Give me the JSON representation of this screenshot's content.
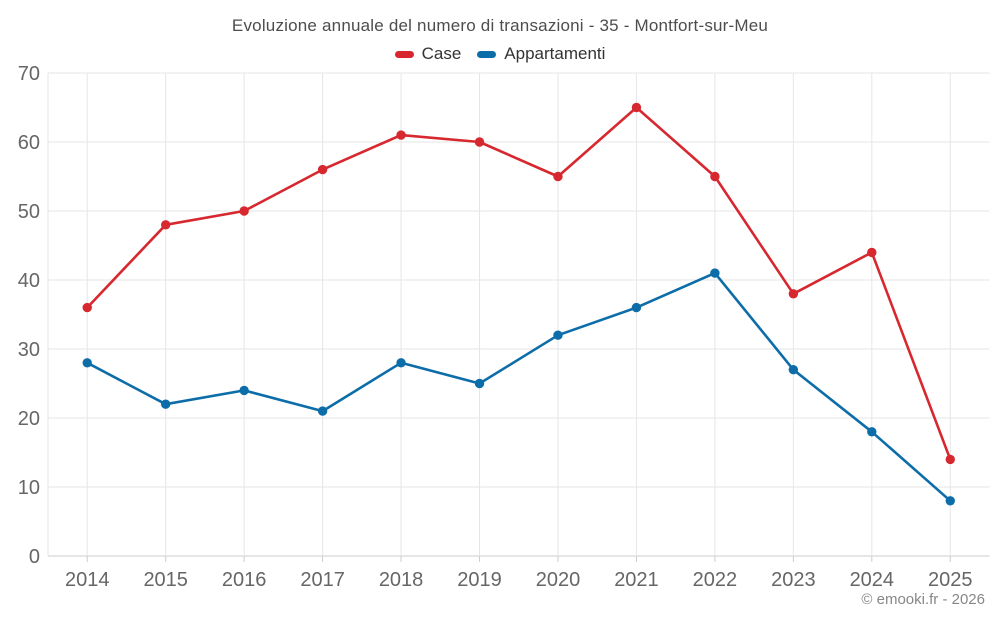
{
  "chart": {
    "title": "Evoluzione annuale del numero di transazioni - 35 - Montfort-sur-Meu",
    "footer": "© emooki.fr - 2026"
  },
  "chart_data": {
    "type": "line",
    "title": "Evoluzione annuale del numero di transazioni - 35 - Montfort-sur-Meu",
    "categories": [
      "2014",
      "2015",
      "2016",
      "2017",
      "2018",
      "2019",
      "2020",
      "2021",
      "2022",
      "2023",
      "2024",
      "2025"
    ],
    "series": [
      {
        "name": "Case",
        "color": "#d7282f",
        "values": [
          36,
          48,
          50,
          56,
          61,
          60,
          55,
          65,
          55,
          38,
          44,
          14
        ]
      },
      {
        "name": "Appartamenti",
        "color": "#0d6da9",
        "values": [
          28,
          22,
          24,
          21,
          28,
          25,
          32,
          36,
          41,
          27,
          18,
          8
        ]
      }
    ],
    "xlabel": "",
    "ylabel": "",
    "ylim": [
      0,
      70
    ],
    "yticks": [
      0,
      10,
      20,
      30,
      40,
      50,
      60,
      70
    ],
    "grid": true,
    "legend_position": "top"
  },
  "colors": {
    "grid": "#e6e6e6",
    "axis_line": "#cccccc",
    "tick": "#cccccc",
    "axis_label": "#666666",
    "title": "#4d4d4d",
    "legend_text": "#333333",
    "footer": "#878787",
    "background": "#ffffff"
  }
}
